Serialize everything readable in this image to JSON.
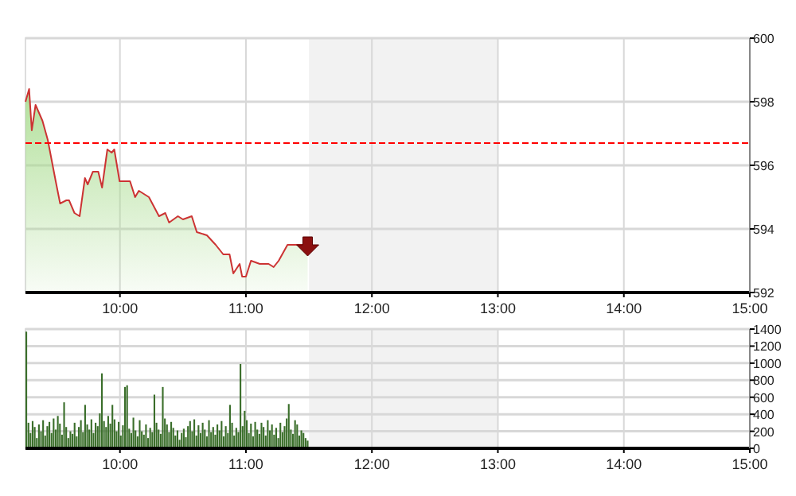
{
  "chart_data": [
    {
      "type": "area",
      "x": [
        9.25,
        9.279,
        9.3,
        9.33,
        9.385,
        9.427,
        9.49,
        9.525,
        9.575,
        9.596,
        9.639,
        9.68,
        9.722,
        9.744,
        9.785,
        9.828,
        9.858,
        9.9,
        9.934,
        9.955,
        9.997,
        10.08,
        10.12,
        10.15,
        10.23,
        10.31,
        10.36,
        10.39,
        10.46,
        10.5,
        10.57,
        10.61,
        10.69,
        10.76,
        10.82,
        10.87,
        10.9,
        10.95,
        10.97,
        11.0,
        11.04,
        11.11,
        11.18,
        11.22,
        11.26,
        11.33,
        11.41,
        11.49
      ],
      "series": [
        {
          "color": "#cc3333",
          "values": [
            598.0,
            598.4,
            597.1,
            597.9,
            597.4,
            596.8,
            595.5,
            594.8,
            594.9,
            594.9,
            594.5,
            594.4,
            595.6,
            595.4,
            595.8,
            595.8,
            595.3,
            596.5,
            596.4,
            596.5,
            595.5,
            595.5,
            595.0,
            595.2,
            595.0,
            594.4,
            594.5,
            594.2,
            594.4,
            594.3,
            594.4,
            593.9,
            593.8,
            593.5,
            593.2,
            593.2,
            592.6,
            592.9,
            592.5,
            592.5,
            593.0,
            592.9,
            592.9,
            592.8,
            593.0,
            593.5,
            593.5,
            593.5
          ]
        }
      ],
      "xlim": [
        9.25,
        15
      ],
      "xticks": [
        {
          "value": 10,
          "label": "10:00"
        },
        {
          "value": 11,
          "label": "11:00"
        },
        {
          "value": 12,
          "label": "12:00"
        },
        {
          "value": 13,
          "label": "13:00"
        },
        {
          "value": 14,
          "label": "14:00"
        },
        {
          "value": 15,
          "label": "15:00"
        }
      ],
      "ylim": [
        592,
        600
      ],
      "yticks": [
        592,
        594,
        596,
        598,
        600
      ],
      "grid": true,
      "ref_lines": [
        {
          "axis": "y",
          "value": 596.7,
          "color": "#ff0000",
          "line_style": "dashed"
        }
      ],
      "bands": [
        {
          "axis": "x",
          "from": 11.5,
          "to": 13,
          "color": "#f2f2f2"
        }
      ]
    },
    {
      "type": "bar",
      "x": [
        9.25,
        9.2667,
        9.2833,
        9.3,
        9.3167,
        9.3333,
        9.35,
        9.3667,
        9.3833,
        9.4,
        9.4167,
        9.4333,
        9.45,
        9.4667,
        9.4833,
        9.5,
        9.5167,
        9.5333,
        9.55,
        9.5667,
        9.5833,
        9.6,
        9.6167,
        9.6333,
        9.65,
        9.6667,
        9.6833,
        9.7,
        9.7167,
        9.7333,
        9.75,
        9.7667,
        9.7833,
        9.8,
        9.8167,
        9.8333,
        9.85,
        9.8667,
        9.8833,
        9.9,
        9.9167,
        9.9333,
        9.95,
        9.9667,
        9.9833,
        10.0,
        10.0167,
        10.0333,
        10.05,
        10.0667,
        10.0833,
        10.1,
        10.1167,
        10.1333,
        10.15,
        10.1667,
        10.1833,
        10.2,
        10.2167,
        10.2333,
        10.25,
        10.2667,
        10.2833,
        10.3,
        10.3167,
        10.3333,
        10.35,
        10.3667,
        10.3833,
        10.4,
        10.4167,
        10.4333,
        10.45,
        10.4667,
        10.4833,
        10.5,
        10.5167,
        10.5333,
        10.55,
        10.5667,
        10.5833,
        10.6,
        10.6167,
        10.6333,
        10.65,
        10.6667,
        10.6833,
        10.7,
        10.7167,
        10.7333,
        10.75,
        10.7667,
        10.7833,
        10.8,
        10.8167,
        10.8333,
        10.85,
        10.8667,
        10.8833,
        10.9,
        10.9167,
        10.9333,
        10.95,
        10.9667,
        10.9833,
        11.0,
        11.0167,
        11.0333,
        11.05,
        11.0667,
        11.0833,
        11.1,
        11.1167,
        11.1333,
        11.15,
        11.1667,
        11.1833,
        11.2,
        11.2167,
        11.2333,
        11.25,
        11.2667,
        11.2833,
        11.3,
        11.3167,
        11.3333,
        11.35,
        11.3667,
        11.3833,
        11.4,
        11.4167,
        11.4333,
        11.45,
        11.4667,
        11.4833
      ],
      "series": [
        {
          "color": "#3a6e2a",
          "values": [
            1370,
            300,
            180,
            320,
            250,
            120,
            280,
            200,
            330,
            150,
            260,
            310,
            180,
            350,
            220,
            380,
            290,
            160,
            540,
            250,
            120,
            200,
            170,
            300,
            140,
            250,
            330,
            190,
            510,
            280,
            220,
            340,
            180,
            300,
            260,
            410,
            880,
            320,
            250,
            380,
            290,
            510,
            340,
            200,
            310,
            150,
            270,
            720,
            740,
            230,
            180,
            360,
            210,
            140,
            330,
            200,
            160,
            280,
            120,
            240,
            190,
            630,
            300,
            220,
            170,
            720,
            350,
            280,
            190,
            310,
            240,
            150,
            210,
            100,
            180,
            230,
            130,
            260,
            320,
            200,
            340,
            150,
            270,
            180,
            300,
            220,
            140,
            330,
            190,
            250,
            160,
            280,
            210,
            320,
            140,
            260,
            180,
            510,
            300,
            150,
            240,
            190,
            990,
            260,
            440,
            330,
            180,
            290,
            140,
            310,
            220,
            170,
            300,
            250,
            150,
            330,
            210,
            280,
            160,
            240,
            120,
            300,
            190,
            260,
            350,
            520,
            220,
            170,
            330,
            280,
            150,
            210,
            180,
            120,
            90
          ]
        }
      ],
      "xlim": [
        9.25,
        15
      ],
      "xticks": [
        {
          "value": 10,
          "label": "10:00"
        },
        {
          "value": 11,
          "label": "11:00"
        },
        {
          "value": 12,
          "label": "12:00"
        },
        {
          "value": 13,
          "label": "13:00"
        },
        {
          "value": 14,
          "label": "14:00"
        },
        {
          "value": 15,
          "label": "15:00"
        }
      ],
      "ylim": [
        0,
        1400
      ],
      "yticks": [
        0,
        200,
        400,
        600,
        800,
        1000,
        1200,
        1400
      ],
      "grid": true,
      "bands": [
        {
          "axis": "x",
          "from": 11.5,
          "to": 13,
          "color": "#f2f2f2"
        }
      ]
    }
  ]
}
